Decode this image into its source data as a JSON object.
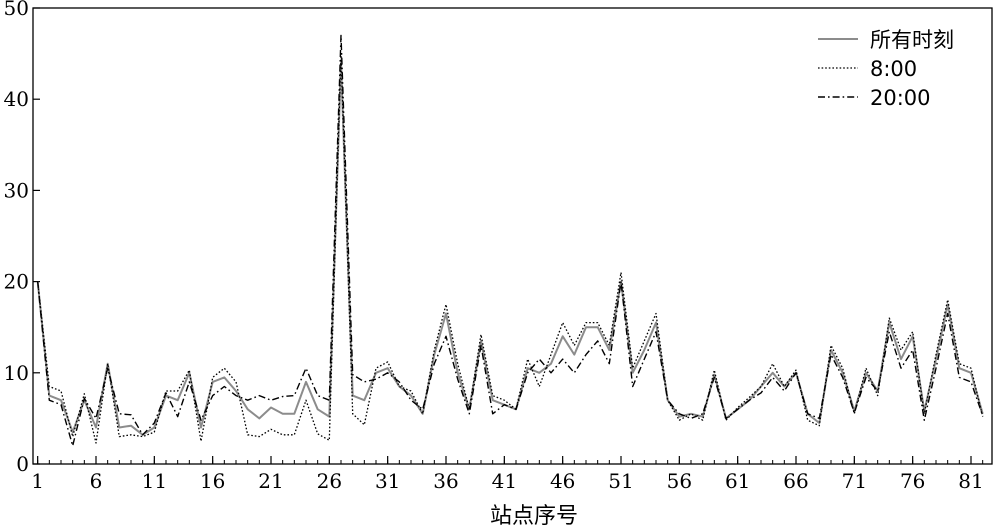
{
  "chart_data": {
    "type": "line",
    "title": "",
    "xlabel": "站点序号",
    "ylabel": "",
    "x": [
      1,
      2,
      3,
      4,
      5,
      6,
      7,
      8,
      9,
      10,
      11,
      12,
      13,
      14,
      15,
      16,
      17,
      18,
      19,
      20,
      21,
      22,
      23,
      24,
      25,
      26,
      27,
      28,
      29,
      30,
      31,
      32,
      33,
      34,
      35,
      36,
      37,
      38,
      39,
      40,
      41,
      42,
      43,
      44,
      45,
      46,
      47,
      48,
      49,
      50,
      51,
      52,
      53,
      54,
      55,
      56,
      57,
      58,
      59,
      60,
      61,
      62,
      63,
      64,
      65,
      66,
      67,
      68,
      69,
      70,
      71,
      72,
      73,
      74,
      75,
      76,
      77,
      78,
      79,
      80,
      81,
      82
    ],
    "x_ticks": [
      1,
      6,
      11,
      16,
      21,
      26,
      31,
      36,
      41,
      46,
      51,
      56,
      61,
      66,
      71,
      76,
      81
    ],
    "xlim": [
      0.6,
      82.8
    ],
    "ylim": [
      0,
      50
    ],
    "y_ticks": [
      0,
      10,
      20,
      30,
      40,
      50
    ],
    "grid": false,
    "legend_position": "top-right",
    "series": [
      {
        "name": "所有时刻",
        "color": "#8c8c8c",
        "values": [
          20,
          7.5,
          7,
          3.5,
          7,
          4,
          11,
          4,
          4.2,
          3.2,
          4,
          7.5,
          7,
          10,
          4,
          9,
          9.5,
          8,
          6,
          5,
          6.2,
          5.5,
          5.5,
          9,
          6,
          5.2,
          44,
          7.5,
          7,
          10,
          10.5,
          8.5,
          7.5,
          5.5,
          12,
          16.5,
          10,
          6,
          13.5,
          7,
          6.5,
          6,
          10.5,
          10,
          11,
          14,
          12,
          15,
          15,
          12.5,
          20,
          10,
          12.5,
          15.5,
          7,
          5.2,
          5.5,
          5.2,
          9.8,
          5,
          6,
          7,
          8.5,
          10,
          8.5,
          10,
          5.5,
          4.5,
          12.5,
          10,
          5.8,
          10,
          8,
          15.5,
          11.5,
          14,
          5.8,
          11.5,
          17.5,
          10.5,
          10,
          5.5
        ]
      },
      {
        "name": "8:00",
        "color": "#000000",
        "values": [
          20,
          8.5,
          8,
          3,
          7.7,
          2.3,
          11,
          3,
          3.2,
          3,
          3.5,
          8,
          8,
          10.3,
          2.5,
          9.5,
          10.5,
          9,
          3.2,
          3,
          3.8,
          3.2,
          3.2,
          7,
          3.3,
          2.6,
          45,
          5.5,
          4.3,
          10.5,
          11.2,
          8.5,
          8,
          5.5,
          12.5,
          17.5,
          11,
          6,
          14.2,
          7.5,
          7,
          6,
          11.5,
          8.5,
          12,
          15.5,
          13,
          15.5,
          15.5,
          13,
          21,
          10.5,
          13.5,
          16.5,
          7,
          4.8,
          5.5,
          4.8,
          10.3,
          4.8,
          6.2,
          7.3,
          8.5,
          11,
          8.5,
          10.3,
          4.8,
          4.2,
          13,
          10.5,
          5.5,
          10.5,
          7.5,
          16,
          12.5,
          14.5,
          5.5,
          12,
          18,
          11,
          10.5,
          5.2
        ]
      },
      {
        "name": "20:00",
        "color": "#000000",
        "values": [
          20,
          7,
          6.5,
          2,
          7.2,
          5,
          10.5,
          5.5,
          5.4,
          3.2,
          4.5,
          7.8,
          5.2,
          9,
          4.8,
          7.5,
          8.5,
          7.5,
          7,
          7.5,
          7,
          7.4,
          7.5,
          10.5,
          7.5,
          7,
          47,
          9.8,
          9,
          9.3,
          10,
          9,
          7,
          6,
          11,
          14,
          9.3,
          5.5,
          13,
          5.5,
          6.5,
          6,
          10,
          11.5,
          10,
          11.5,
          10,
          12,
          13.5,
          11,
          20,
          8.5,
          11.5,
          14.5,
          7,
          5.5,
          5,
          5.5,
          9.5,
          5,
          6,
          7,
          7.8,
          9.5,
          8,
          10,
          5.5,
          5,
          12,
          9.5,
          5.6,
          9.5,
          8,
          14.5,
          10.5,
          12.5,
          4.8,
          10.5,
          16.5,
          9.5,
          9,
          5.3
        ]
      }
    ]
  }
}
